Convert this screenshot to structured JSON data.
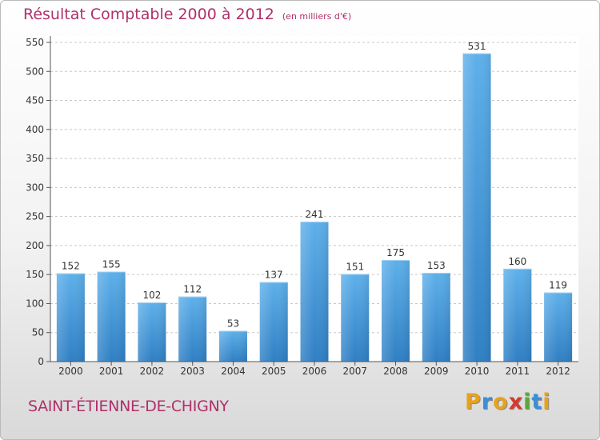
{
  "chart_data": {
    "type": "bar",
    "title": "Résultat Comptable 2000 à 2012",
    "subtitle": "(en milliers d'€)",
    "categories": [
      "2000",
      "2001",
      "2002",
      "2003",
      "2004",
      "2005",
      "2006",
      "2007",
      "2008",
      "2009",
      "2010",
      "2011",
      "2012"
    ],
    "values": [
      152,
      155,
      102,
      112,
      53,
      137,
      241,
      151,
      175,
      153,
      531,
      160,
      119
    ],
    "yticks": [
      0,
      50,
      100,
      150,
      200,
      250,
      300,
      350,
      400,
      450,
      500,
      550
    ],
    "ylim": [
      0,
      550
    ],
    "xlabel": "",
    "ylabel": "",
    "grid": true,
    "bar_color": "#4a9fe0"
  },
  "commune": "SAINT-ÉTIENNE-DE-CHIGNY",
  "logo": {
    "letters": [
      "P",
      "r",
      "o",
      "x",
      "i",
      "t",
      "i"
    ],
    "colors": [
      "#e8a21a",
      "#3a8fd8",
      "#e8a21a",
      "#d63a2e",
      "#5aa83a",
      "#3a8fd8",
      "#e8a21a"
    ]
  }
}
